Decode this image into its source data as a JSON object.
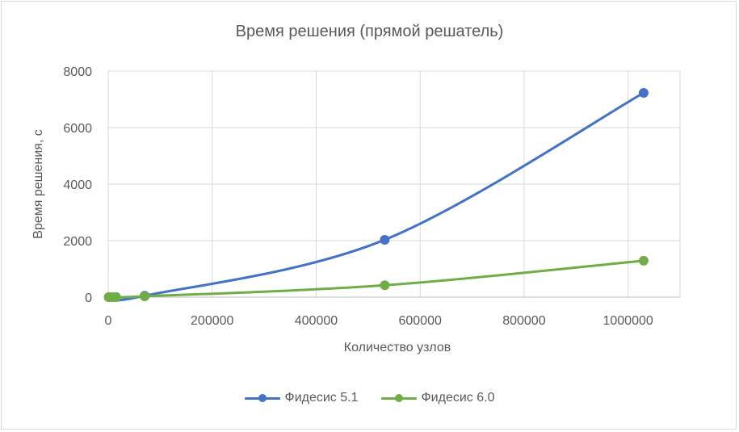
{
  "chart_data": {
    "type": "line",
    "title": "Время решения (прямой решатель)",
    "xlabel": "Количество узлов",
    "ylabel": "Время решения, с",
    "xlim": [
      0,
      1100000
    ],
    "ylim": [
      0,
      8000
    ],
    "xticks": [
      0,
      200000,
      400000,
      600000,
      800000,
      1000000
    ],
    "yticks": [
      0,
      2000,
      4000,
      6000,
      8000
    ],
    "xtick_labels": [
      "0",
      "200000",
      "400000",
      "600000",
      "800000",
      "1000000"
    ],
    "ytick_labels": [
      "0",
      "2000",
      "4000",
      "6000",
      "8000"
    ],
    "grid": true,
    "smooth": true,
    "legend_position": "bottom",
    "series": [
      {
        "name": "Фидесис 5.1",
        "color": "#4472c4",
        "x": [
          1000,
          8000,
          15000,
          70000,
          532000,
          1030000
        ],
        "y": [
          0,
          0,
          5,
          50,
          2030,
          7230
        ]
      },
      {
        "name": "Фидесис 6.0",
        "color": "#70ad47",
        "x": [
          1000,
          8000,
          15000,
          70000,
          532000,
          1030000
        ],
        "y": [
          0,
          0,
          2,
          30,
          420,
          1290
        ]
      }
    ]
  }
}
